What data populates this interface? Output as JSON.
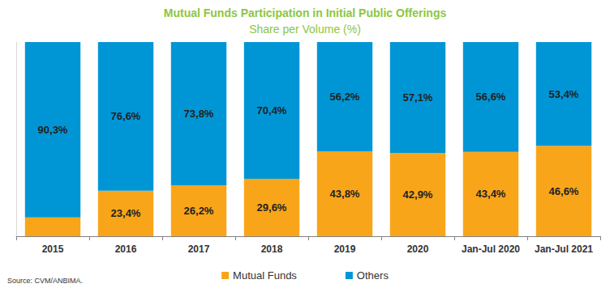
{
  "chart_data": {
    "type": "bar",
    "title": "Mutual Funds Participation in Initial Public Offerings",
    "subtitle": "Share per Volume (%)",
    "source": "Source: CVM/ANBIMA.",
    "categories": [
      "2015",
      "2016",
      "2017",
      "2018",
      "2019",
      "2020",
      "Jan-Jul 2020",
      "Jan-Jul 2021"
    ],
    "series": [
      {
        "name": "Mutual Funds",
        "color": "#f9a51a",
        "values": [
          9.7,
          23.4,
          26.2,
          29.6,
          43.8,
          42.9,
          43.4,
          46.6
        ],
        "value_labels": [
          null,
          "23,4%",
          "26,2%",
          "29,6%",
          "43,8%",
          "42,9%",
          "43,4%",
          "46,6%"
        ]
      },
      {
        "name": "Others",
        "color": "#0096d6",
        "values": [
          90.3,
          76.6,
          73.8,
          70.4,
          56.2,
          57.1,
          56.6,
          53.4
        ],
        "value_labels": [
          "90,3%",
          "76,6%",
          "73,8%",
          "70,4%",
          "56,2%",
          "57,1%",
          "56,6%",
          "53,4%"
        ]
      }
    ],
    "ylim": [
      0,
      100
    ],
    "stacked": true,
    "data_labels": true,
    "tick_labels": "x",
    "grid": false,
    "legend": "bottom"
  }
}
